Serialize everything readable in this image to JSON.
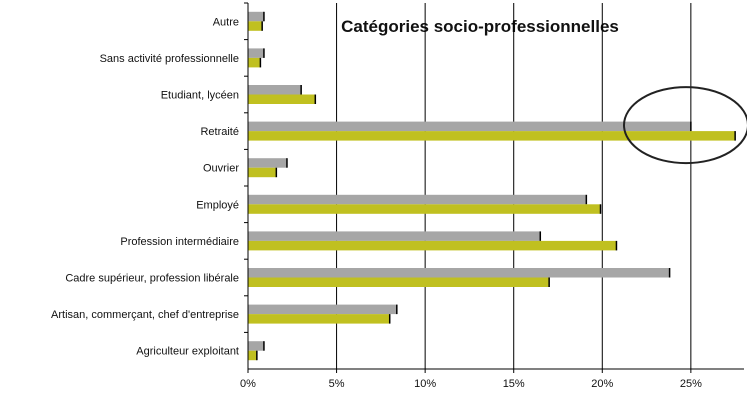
{
  "chart_data": {
    "type": "bar",
    "orientation": "horizontal",
    "title": "Catégories socio-professionnelles",
    "categories": [
      "Agriculteur exploitant",
      "Artisan, commerçant, chef d'entreprise",
      "Cadre supérieur, profession libérale",
      "Profession intermédiaire",
      "Employé",
      "Ouvrier",
      "Retraité",
      "Etudiant, lycéen",
      "Sans activité professionnelle",
      "Autre"
    ],
    "series": [
      {
        "color": "#a6a6a6",
        "values": [
          0.9,
          8.4,
          23.8,
          16.5,
          19.1,
          2.2,
          25.0,
          3.0,
          0.9,
          0.9
        ]
      },
      {
        "color": "#c0c020",
        "values": [
          0.5,
          8.0,
          17.0,
          20.8,
          19.9,
          1.6,
          27.5,
          3.8,
          0.7,
          0.8
        ]
      }
    ],
    "xlim": [
      0,
      28
    ],
    "xticks": [
      0,
      5,
      10,
      15,
      20,
      25
    ],
    "xtick_labels": [
      "0%",
      "5%",
      "10%",
      "15%",
      "20%",
      "25%"
    ],
    "grid": "vertical",
    "annotation": {
      "type": "ellipse",
      "category": "Retraité"
    }
  }
}
